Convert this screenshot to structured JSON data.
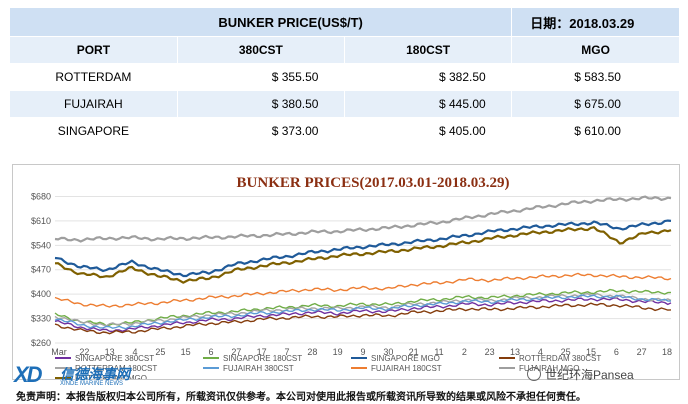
{
  "table": {
    "title": "BUNKER  PRICE(US$/T)",
    "date_label": "日期：2018.03.29",
    "columns": [
      "PORT",
      "380CST",
      "180CST",
      "MGO"
    ],
    "rows": [
      {
        "port": "ROTTERDAM",
        "cst380": "$ 355.50",
        "cst180": "$ 382.50",
        "mgo": "$ 583.50"
      },
      {
        "port": "FUJAIRAH",
        "cst380": "$ 380.50",
        "cst180": "$ 445.00",
        "mgo": "$ 675.00"
      },
      {
        "port": "SINGAPORE",
        "cst380": "$ 373.00",
        "cst180": "$ 405.00",
        "mgo": "$ 610.00"
      }
    ]
  },
  "chart_data": {
    "type": "line",
    "title": "BUNKER PRICES(2017.03.01-2018.03.29)",
    "xlabel": "",
    "ylabel": "",
    "ylim": [
      260,
      690
    ],
    "yticks": [
      260,
      330,
      400,
      470,
      540,
      610,
      680
    ],
    "ytick_labels": [
      "$260",
      "$330",
      "$400",
      "$470",
      "$540",
      "$610",
      "$680"
    ],
    "xtick_labels": [
      "Mar",
      "22",
      "13",
      "4",
      "25",
      "15",
      "6",
      "27",
      "17",
      "7",
      "28",
      "19",
      "9",
      "30",
      "21",
      "11",
      "2",
      "23",
      "13",
      "4",
      "25",
      "15",
      "6",
      "27",
      "18"
    ],
    "grid": true,
    "legend": "bottom",
    "series": [
      {
        "name": "SINGAPORE 380CST",
        "color": "#7030a0",
        "values": [
          322,
          305,
          295,
          300,
          310,
          318,
          326,
          330,
          338,
          342,
          348,
          345,
          352,
          350,
          360,
          364,
          372,
          370,
          376,
          380,
          383,
          386,
          385,
          378,
          375
        ]
      },
      {
        "name": "SINGAPORE 180CST",
        "color": "#70ad47",
        "values": [
          342,
          322,
          313,
          318,
          330,
          338,
          346,
          350,
          358,
          362,
          368,
          366,
          372,
          370,
          380,
          385,
          392,
          390,
          396,
          400,
          404,
          406,
          410,
          406,
          405
        ]
      },
      {
        "name": "SINGAPORE MGO",
        "color": "#1f5a99",
        "values": [
          505,
          478,
          470,
          492,
          470,
          455,
          462,
          485,
          498,
          508,
          520,
          528,
          536,
          542,
          550,
          558,
          568,
          580,
          588,
          595,
          600,
          605,
          588,
          600,
          610
        ]
      },
      {
        "name": "ROTTERDAM 380CST",
        "color": "#843c0c",
        "values": [
          312,
          296,
          290,
          292,
          300,
          308,
          316,
          320,
          328,
          332,
          336,
          335,
          340,
          338,
          348,
          352,
          358,
          356,
          360,
          364,
          368,
          370,
          368,
          360,
          355
        ]
      },
      {
        "name": "ROTTERDAM 180CST",
        "color": "#a5a5a5",
        "values": [
          337,
          320,
          312,
          316,
          324,
          332,
          340,
          344,
          352,
          356,
          360,
          359,
          364,
          362,
          372,
          376,
          384,
          382,
          388,
          392,
          396,
          398,
          394,
          386,
          382
        ]
      },
      {
        "name": "FUJAIRAH 380CST",
        "color": "#5b9bd5",
        "values": [
          330,
          312,
          303,
          307,
          318,
          326,
          334,
          338,
          346,
          350,
          356,
          354,
          360,
          358,
          368,
          372,
          380,
          378,
          384,
          388,
          392,
          394,
          392,
          385,
          380
        ]
      },
      {
        "name": "FUJAIRAH 180CST",
        "color": "#ed7d31",
        "values": [
          388,
          372,
          365,
          370,
          375,
          382,
          390,
          395,
          402,
          408,
          414,
          412,
          418,
          416,
          428,
          432,
          442,
          440,
          446,
          450,
          454,
          455,
          450,
          448,
          445
        ]
      },
      {
        "name": "FUJAIRAH MGO",
        "color": "#9e9e9e",
        "values": [
          558,
          556,
          560,
          562,
          558,
          560,
          562,
          565,
          568,
          572,
          578,
          580,
          585,
          590,
          598,
          606,
          618,
          630,
          640,
          650,
          660,
          668,
          672,
          675,
          675
        ]
      },
      {
        "name": "ROTTERDAM MGO",
        "color": "#7f6000",
        "values": [
          488,
          458,
          450,
          475,
          452,
          438,
          445,
          468,
          480,
          490,
          500,
          510,
          516,
          522,
          530,
          538,
          548,
          560,
          570,
          578,
          584,
          590,
          548,
          575,
          583.5
        ]
      }
    ]
  },
  "logo": {
    "mark": "XD",
    "name": "信德海事网",
    "tagline": "XINDE MARINE NEWS"
  },
  "watermark": "世纪环海Pansea",
  "disclaimer": "免责声明：本报告版权归本公司所有，所载资讯仅供参考。本公司对使用此报告或所载资讯所导致的结果或风险不承担任何责任。"
}
